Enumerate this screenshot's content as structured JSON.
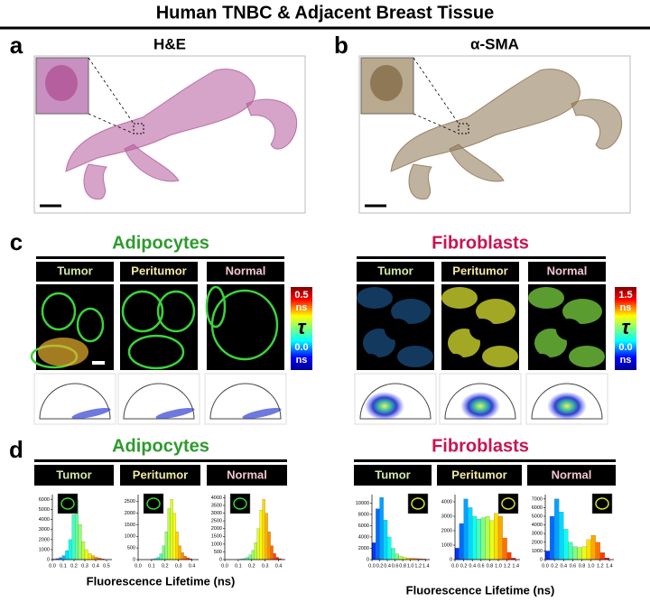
{
  "header": {
    "title": "Human TNBC & Adjacent Breast Tissue"
  },
  "panels": {
    "a": {
      "label": "a",
      "title": "H&E"
    },
    "b": {
      "label": "b",
      "title": "α-SMA"
    },
    "c": {
      "label": "c",
      "groups": [
        {
          "title": "Adipocytes",
          "columns": [
            "Tumor",
            "Peritumor",
            "Normal"
          ],
          "colorbar": {
            "max": "0.5",
            "unit": "ns",
            "symbol": "τ",
            "min": "0.0"
          }
        },
        {
          "title": "Fibroblasts",
          "columns": [
            "Tumor",
            "Peritumor",
            "Normal"
          ],
          "colorbar": {
            "max": "1.5",
            "unit": "ns",
            "symbol": "τ",
            "min": "0.0"
          }
        }
      ]
    },
    "d": {
      "label": "d",
      "groups": [
        {
          "title": "Adipocytes",
          "x_label": "Fluorescence Lifetime (ns)"
        },
        {
          "title": "Fibroblasts",
          "x_label": "Fluorescence Lifetime (ns)"
        }
      ]
    }
  },
  "chart_data": [
    {
      "type": "histogram",
      "title": "Tumor",
      "bins": [
        0,
        0.03,
        0.06,
        0.09,
        0.12,
        0.15,
        0.18,
        0.21,
        0.24,
        0.27,
        0.3,
        0.33,
        0.36,
        0.39,
        0.42,
        0.45,
        0.48
      ],
      "values": [
        50,
        100,
        200,
        400,
        900,
        2000,
        4500,
        6000,
        3500,
        1800,
        1000,
        600,
        400,
        250,
        150,
        80
      ],
      "xlim": [
        0,
        0.55
      ],
      "ylim": [
        0,
        6500
      ],
      "xticks": [
        {
          "value": 0,
          "label": "0.0"
        },
        0.1,
        0.2,
        0.3,
        0.4,
        0.5
      ],
      "yticks": [
        0,
        1000,
        2000,
        3000,
        4000,
        5000,
        6000
      ]
    },
    {
      "type": "histogram",
      "title": "Peritumor",
      "bins": [
        0.1,
        0.12,
        0.14,
        0.16,
        0.18,
        0.2,
        0.22,
        0.24,
        0.26,
        0.28,
        0.3,
        0.32,
        0.34,
        0.36,
        0.38,
        0.4
      ],
      "values": [
        20,
        50,
        100,
        250,
        600,
        1200,
        2200,
        2600,
        2000,
        1200,
        600,
        300,
        150,
        80,
        40
      ],
      "xlim": [
        0,
        0.45
      ],
      "ylim": [
        0,
        2800
      ],
      "xticks": [
        {
          "value": 0,
          "label": "0.0"
        },
        0.1,
        0.2,
        0.3,
        0.4
      ],
      "yticks": [
        0,
        500,
        1000,
        1500,
        2000,
        2500
      ]
    },
    {
      "type": "histogram",
      "title": "Normal",
      "bins": [
        0.1,
        0.12,
        0.14,
        0.16,
        0.18,
        0.2,
        0.22,
        0.24,
        0.26,
        0.28,
        0.3,
        0.32,
        0.34,
        0.36,
        0.38,
        0.4,
        0.42,
        0.44
      ],
      "values": [
        20,
        40,
        80,
        150,
        300,
        600,
        1100,
        2000,
        3200,
        3900,
        3000,
        1800,
        900,
        400,
        150,
        60,
        20
      ],
      "xlim": [
        0,
        0.45
      ],
      "ylim": [
        0,
        4200
      ],
      "xticks": [
        {
          "value": 0,
          "label": "0.0"
        },
        0.1,
        0.2,
        0.3,
        0.4
      ],
      "yticks": [
        0,
        500,
        1000,
        1500,
        2000,
        2500,
        3000,
        3500,
        4000
      ]
    },
    {
      "type": "histogram",
      "title": "Tumor",
      "bins": [
        0,
        0.1,
        0.2,
        0.3,
        0.4,
        0.5,
        0.6,
        0.7,
        0.8,
        0.9,
        1,
        1.1,
        1.2,
        1.3,
        1.4
      ],
      "values": [
        3000,
        9000,
        11000,
        7000,
        4000,
        2000,
        1000,
        600,
        400,
        300,
        250,
        200,
        150,
        100
      ],
      "xlim": [
        0,
        1.5
      ],
      "ylim": [
        0,
        11500
      ],
      "xticks": [
        {
          "value": 0,
          "label": "0.0"
        },
        0.2,
        0.4,
        0.6,
        0.8,
        {
          "value": 1,
          "label": "1.0"
        },
        1.2,
        1.4
      ],
      "yticks": [
        0,
        2000,
        4000,
        6000,
        8000,
        10000
      ]
    },
    {
      "type": "histogram",
      "title": "Peritumor",
      "bins": [
        0,
        0.1,
        0.2,
        0.3,
        0.4,
        0.5,
        0.6,
        0.7,
        0.8,
        0.9,
        1,
        1.1,
        1.2,
        1.3,
        1.4
      ],
      "values": [
        800,
        2500,
        4200,
        3600,
        3000,
        2800,
        2900,
        3000,
        2700,
        3200,
        3000,
        1500,
        500,
        100
      ],
      "xlim": [
        0,
        1.5
      ],
      "ylim": [
        0,
        4500
      ],
      "xticks": [
        {
          "value": 0,
          "label": "0.0"
        },
        0.2,
        0.4,
        0.6,
        0.8,
        {
          "value": 1,
          "label": "1.0"
        },
        1.2,
        1.4
      ],
      "yticks": [
        0,
        1000,
        2000,
        3000,
        4000
      ]
    },
    {
      "type": "histogram",
      "title": "Normal",
      "bins": [
        0,
        0.1,
        0.2,
        0.3,
        0.4,
        0.5,
        0.6,
        0.7,
        0.8,
        0.9,
        1,
        1.1,
        1.2,
        1.3,
        1.4
      ],
      "values": [
        1000,
        5000,
        7000,
        5500,
        3500,
        2000,
        1500,
        1400,
        1500,
        2300,
        2800,
        2000,
        800,
        200
      ],
      "xlim": [
        0,
        1.5
      ],
      "ylim": [
        0,
        7500
      ],
      "xticks": [
        {
          "value": 0,
          "label": "0.0"
        },
        0.2,
        0.4,
        0.6,
        0.8,
        {
          "value": 1,
          "label": "1.0"
        },
        1.2,
        1.4
      ],
      "yticks": [
        0,
        1000,
        2000,
        3000,
        4000,
        5000,
        6000,
        7000
      ]
    }
  ]
}
